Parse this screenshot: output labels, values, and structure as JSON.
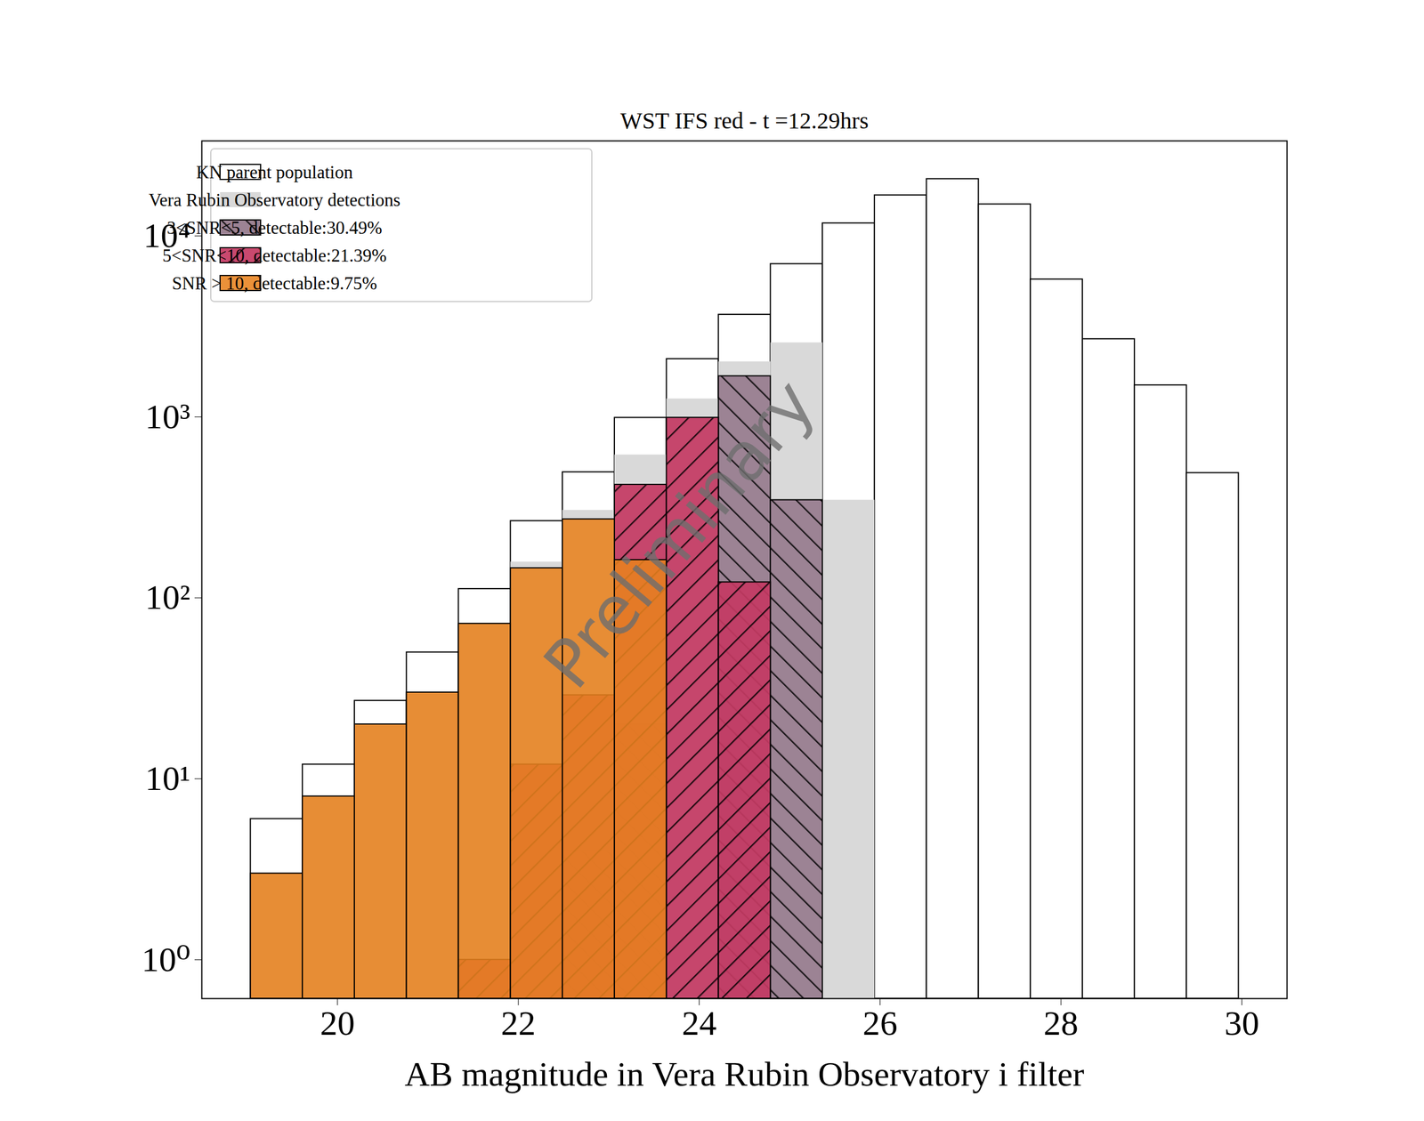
{
  "chart_data": {
    "type": "histogram",
    "title": "WST IFS red - t =12.29hrs",
    "x_label": "AB magnitude in Vera Rubin Observatory i filter",
    "bins": [
      19.04,
      19.615,
      20.19,
      20.765,
      21.34,
      21.915,
      22.49,
      23.065,
      23.64,
      24.215,
      24.79,
      25.365,
      25.94,
      26.515,
      27.09,
      27.665,
      28.24,
      28.815,
      29.39,
      29.965
    ],
    "series": [
      {
        "name": "KN parent population",
        "color": "#ffffff",
        "values": [
          6,
          12,
          27,
          50,
          112,
          266,
          495,
          989,
          2089,
          3673,
          6998,
          11750,
          16790,
          20650,
          14960,
          5754,
          2692,
          1496,
          490
        ]
      },
      {
        "name": "Vera Rubin Observatory detections",
        "color": "#d9d9d9",
        "values": [
          3,
          8,
          20,
          30,
          72,
          158,
          305,
          617,
          1259,
          2018,
          2570,
          347,
          null,
          null,
          null,
          null,
          null,
          null,
          null
        ]
      },
      {
        "name": "3<SNR<5, detectable:30.49%",
        "color": "#9c8394",
        "values": [
          null,
          null,
          null,
          null,
          null,
          null,
          4,
          20,
          null,
          1680,
          347,
          null,
          null,
          null,
          null,
          null,
          null,
          null,
          null
        ]
      },
      {
        "name": "5<SNR<10, detectable:21.39%",
        "color": "#c43a63",
        "values": [
          null,
          null,
          null,
          null,
          1,
          12,
          29,
          422,
          990,
          122,
          null,
          null,
          null,
          null,
          null,
          null,
          null,
          null,
          null
        ]
      },
      {
        "name": "SNR > 10, detectable:9.75%",
        "color": "#e8821e",
        "values": [
          3,
          8,
          20,
          30,
          72,
          146,
          272,
          162,
          null,
          null,
          null,
          null,
          null,
          null,
          null,
          null,
          null,
          null,
          null
        ]
      }
    ],
    "log": "y",
    "xlim": [
      18.5,
      30.5
    ],
    "xticks": [
      20,
      22,
      24,
      26,
      28,
      30
    ],
    "ylim": [
      0.61,
      33500
    ],
    "yticks": [
      {
        "value": 1,
        "label": "10⁰"
      },
      {
        "value": 10,
        "label": "10¹"
      },
      {
        "value": 100,
        "label": "10²"
      },
      {
        "value": 1000,
        "label": "10³"
      },
      {
        "value": 10000,
        "label": "10⁴"
      }
    ],
    "legend": "upper left",
    "annotations": [
      {
        "text": "Preliminary"
      }
    ]
  }
}
